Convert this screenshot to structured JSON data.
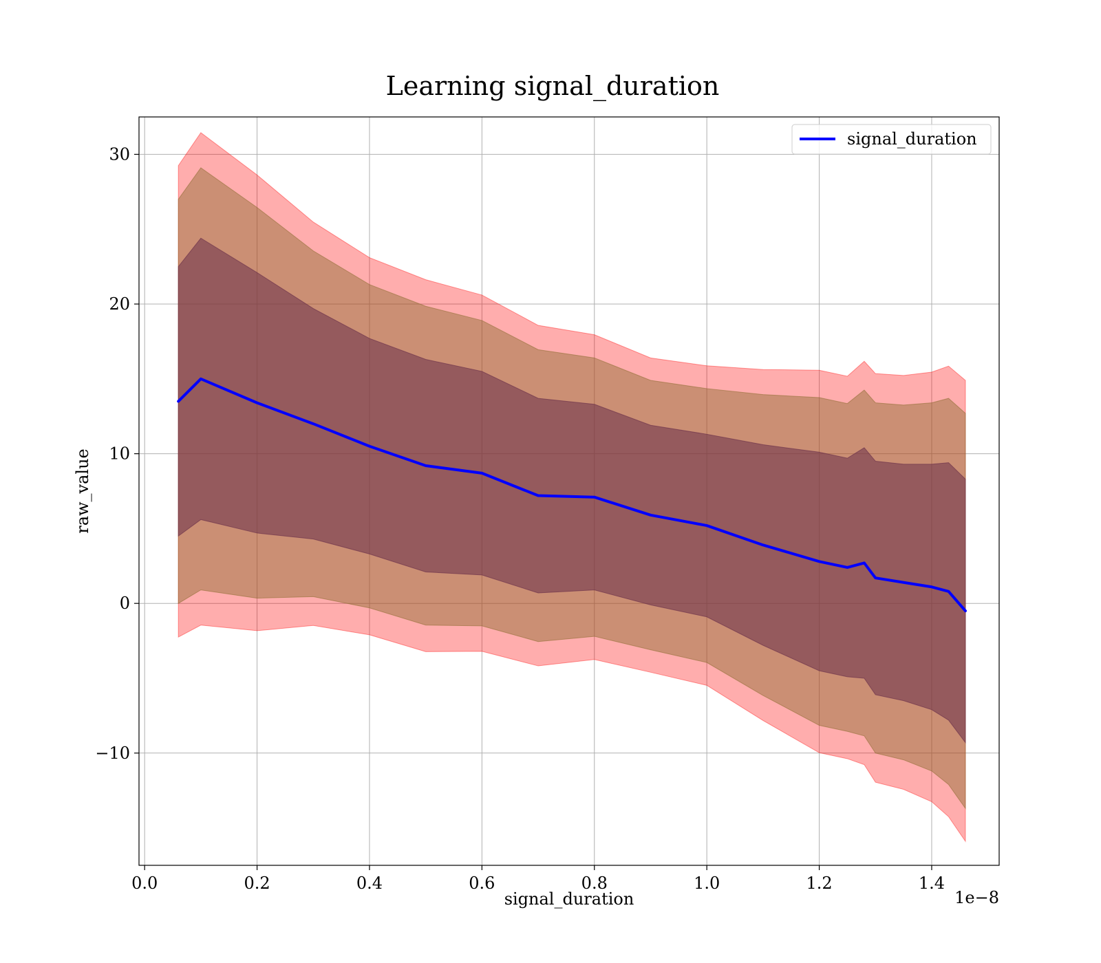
{
  "chart_data": {
    "type": "line",
    "title": "Learning signal_duration",
    "xlabel": "signal_duration",
    "ylabel": "raw_value",
    "x_offset_text": "1e−8",
    "xlim": [
      -1e-10,
      1.52e-08
    ],
    "ylim": [
      -17.5,
      32.5
    ],
    "x_ticks": [
      0.0,
      2e-09,
      4e-09,
      6e-09,
      8e-09,
      1e-08,
      1.2e-08,
      1.4e-08
    ],
    "x_tick_labels": [
      "0.0",
      "0.2",
      "0.4",
      "0.6",
      "0.8",
      "1.0",
      "1.2",
      "1.4"
    ],
    "y_ticks": [
      -10,
      0,
      10,
      20,
      30
    ],
    "y_tick_labels": [
      "−10",
      "0",
      "10",
      "20",
      "30"
    ],
    "grid": true,
    "legend": {
      "position": "upper-right",
      "entries": [
        "signal_duration"
      ]
    },
    "colors": {
      "line": "#0000ff",
      "band_outer": "#ff0000",
      "band_mid": "#8b6b2f",
      "band_inner": "#6a2f4a",
      "grid": "#b0b0b0"
    },
    "series": [
      {
        "name": "signal_duration",
        "x": [
          6e-10,
          1e-09,
          2e-09,
          3e-09,
          4e-09,
          5e-09,
          6e-09,
          7e-09,
          8e-09,
          9e-09,
          1e-08,
          1.1e-08,
          1.2e-08,
          1.25e-08,
          1.28e-08,
          1.3e-08,
          1.35e-08,
          1.4e-08,
          1.43e-08,
          1.46e-08
        ],
        "y": [
          13.5,
          15.0,
          13.4,
          12.0,
          10.5,
          9.2,
          8.7,
          7.2,
          7.1,
          5.9,
          5.2,
          3.9,
          2.8,
          2.4,
          2.7,
          1.7,
          1.4,
          1.1,
          0.8,
          -0.5
        ],
        "std": [
          9.0,
          9.4,
          8.7,
          7.7,
          7.2,
          7.1,
          6.8,
          6.5,
          6.2,
          6.0,
          6.1,
          6.7,
          7.3,
          7.3,
          7.7,
          7.8,
          7.9,
          8.2,
          8.6,
          8.8
        ]
      }
    ]
  }
}
